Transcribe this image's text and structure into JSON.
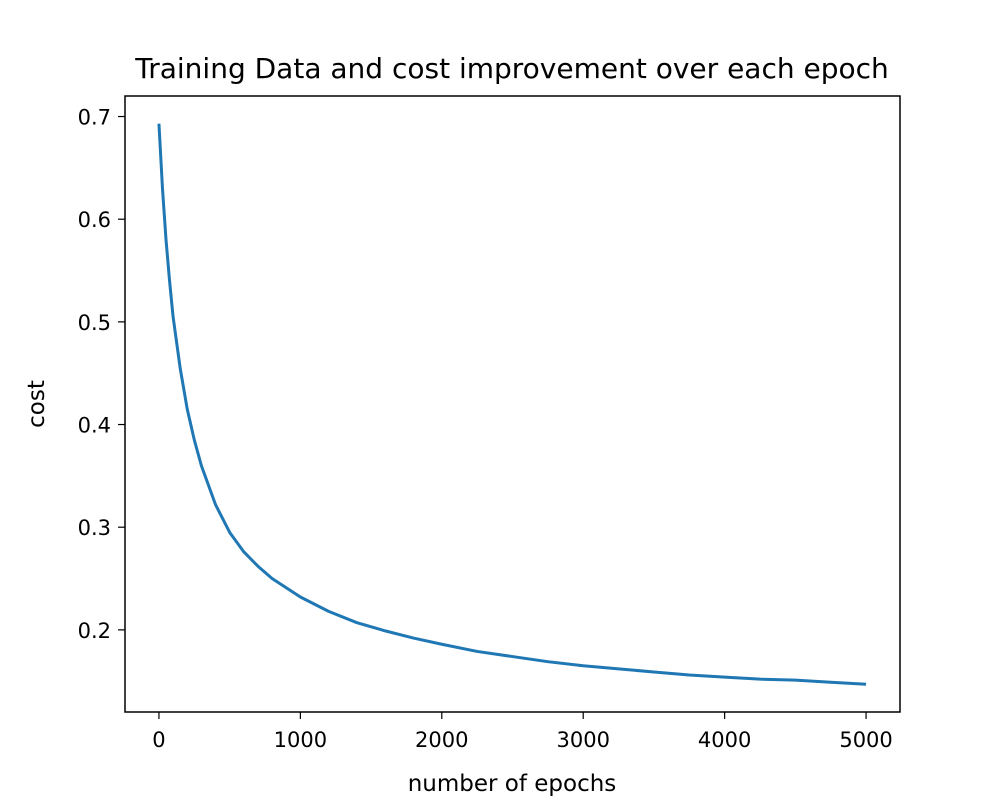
{
  "chart_data": {
    "type": "line",
    "title": "Training Data and cost improvement over each epoch",
    "xlabel": "number of epochs",
    "ylabel": "cost",
    "xlim": [
      -240,
      5240
    ],
    "ylim": [
      0.12,
      0.72
    ],
    "xticks": [
      0,
      1000,
      2000,
      3000,
      4000,
      5000
    ],
    "xtick_labels": [
      "0",
      "1000",
      "2000",
      "3000",
      "4000",
      "5000"
    ],
    "yticks": [
      0.2,
      0.3,
      0.4,
      0.5,
      0.6,
      0.7
    ],
    "ytick_labels": [
      "0.2",
      "0.3",
      "0.4",
      "0.5",
      "0.6",
      "0.7"
    ],
    "grid": false,
    "legend": "none",
    "series": [
      {
        "color": "#1f77b4",
        "x": [
          0,
          25,
          50,
          75,
          100,
          150,
          200,
          250,
          300,
          400,
          500,
          600,
          700,
          800,
          1000,
          1200,
          1400,
          1600,
          1800,
          2000,
          2250,
          2500,
          2750,
          3000,
          3250,
          3500,
          3750,
          4000,
          4250,
          4500,
          4750,
          5000
        ],
        "y": [
          0.693,
          0.63,
          0.58,
          0.54,
          0.505,
          0.455,
          0.415,
          0.385,
          0.36,
          0.322,
          0.295,
          0.276,
          0.262,
          0.25,
          0.232,
          0.218,
          0.207,
          0.199,
          0.192,
          0.186,
          0.179,
          0.174,
          0.169,
          0.165,
          0.162,
          0.159,
          0.156,
          0.154,
          0.152,
          0.151,
          0.149,
          0.147
        ]
      }
    ]
  }
}
